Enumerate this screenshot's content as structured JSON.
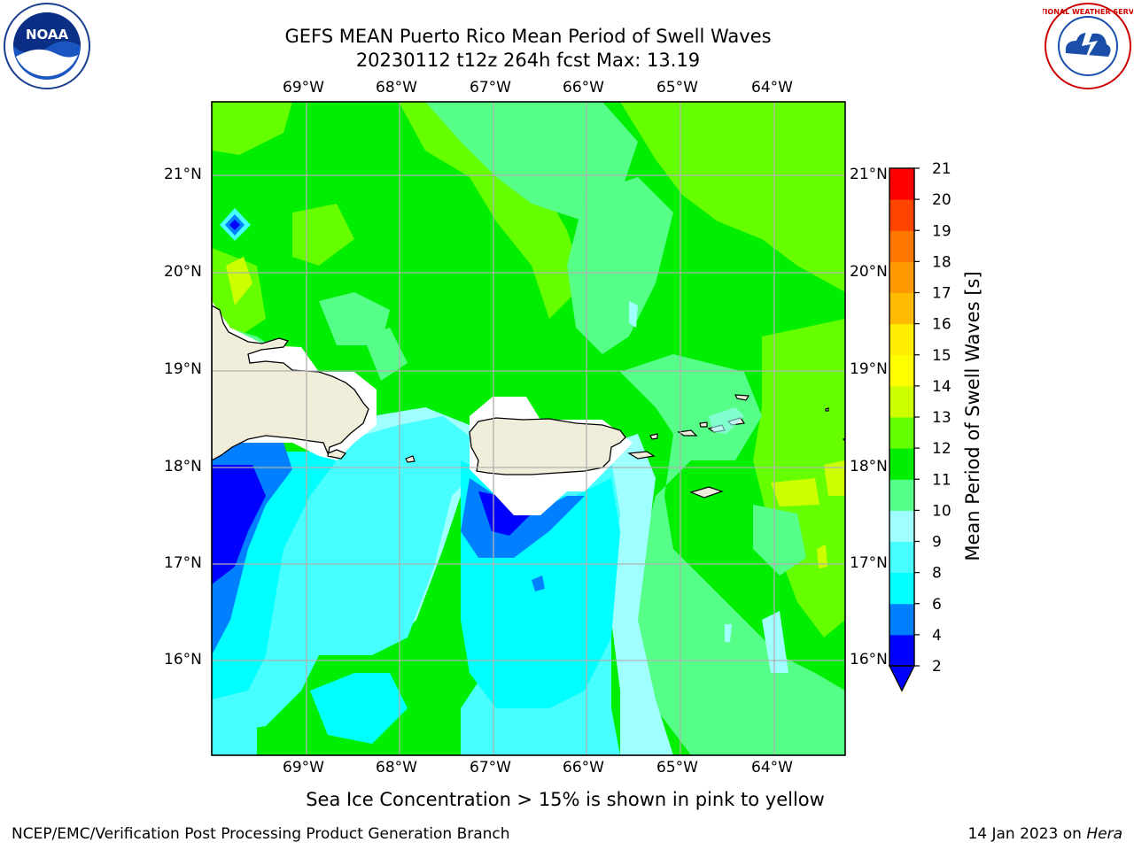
{
  "header": {
    "title_line1": "GEFS MEAN Puerto Rico Mean Period of Swell Waves",
    "title_line2": "20230112 t12z 264h fcst   Max: 13.19"
  },
  "logos": {
    "left": {
      "icon": "noaa-logo-icon",
      "text": "NOAA"
    },
    "right": {
      "icon": "nws-logo-icon",
      "text": "NATIONAL WEATHER SERVICE"
    }
  },
  "map": {
    "lon_labels": [
      "69°W",
      "68°W",
      "67°W",
      "66°W",
      "65°W",
      "64°W"
    ],
    "lat_labels": [
      "21°N",
      "20°N",
      "19°N",
      "18°N",
      "17°N",
      "16°N"
    ],
    "lon_range": [
      -70.0,
      -63.25
    ],
    "lat_range": [
      15.0,
      21.75
    ],
    "land_color": "#f0eedb",
    "coast_color": "#000000"
  },
  "colorbar": {
    "label": "Mean Period of Swell Waves [s]",
    "ticks": [
      "21",
      "20",
      "19",
      "18",
      "17",
      "16",
      "15",
      "14",
      "13",
      "12",
      "11",
      "10",
      "9",
      "8",
      "6",
      "4",
      "2"
    ],
    "bins": [
      {
        "from": 2,
        "to": 4,
        "color": "#0000ff"
      },
      {
        "from": 4,
        "to": 6,
        "color": "#0080ff"
      },
      {
        "from": 6,
        "to": 8,
        "color": "#00ffff"
      },
      {
        "from": 8,
        "to": 9,
        "color": "#47ffff"
      },
      {
        "from": 9,
        "to": 10,
        "color": "#a0ffff"
      },
      {
        "from": 10,
        "to": 11,
        "color": "#55ff88"
      },
      {
        "from": 11,
        "to": 12,
        "color": "#00ee00"
      },
      {
        "from": 12,
        "to": 13,
        "color": "#66ff00"
      },
      {
        "from": 13,
        "to": 14,
        "color": "#ccff00"
      },
      {
        "from": 14,
        "to": 15,
        "color": "#ffff00"
      },
      {
        "from": 15,
        "to": 16,
        "color": "#ffee00"
      },
      {
        "from": 16,
        "to": 17,
        "color": "#ffbb00"
      },
      {
        "from": 17,
        "to": 18,
        "color": "#ff9900"
      },
      {
        "from": 18,
        "to": 19,
        "color": "#ff7700"
      },
      {
        "from": 19,
        "to": 20,
        "color": "#ff4400"
      },
      {
        "from": 20,
        "to": 21,
        "color": "#ff0000"
      }
    ],
    "under_color": "#0000ff"
  },
  "caption": "Sea Ice Concentration > 15% is shown in pink to yellow",
  "footer": {
    "left": "NCEP/EMC/Verification Post Processing Product Generation Branch",
    "date": "14 Jan 2023 on ",
    "machine": "Hera"
  }
}
